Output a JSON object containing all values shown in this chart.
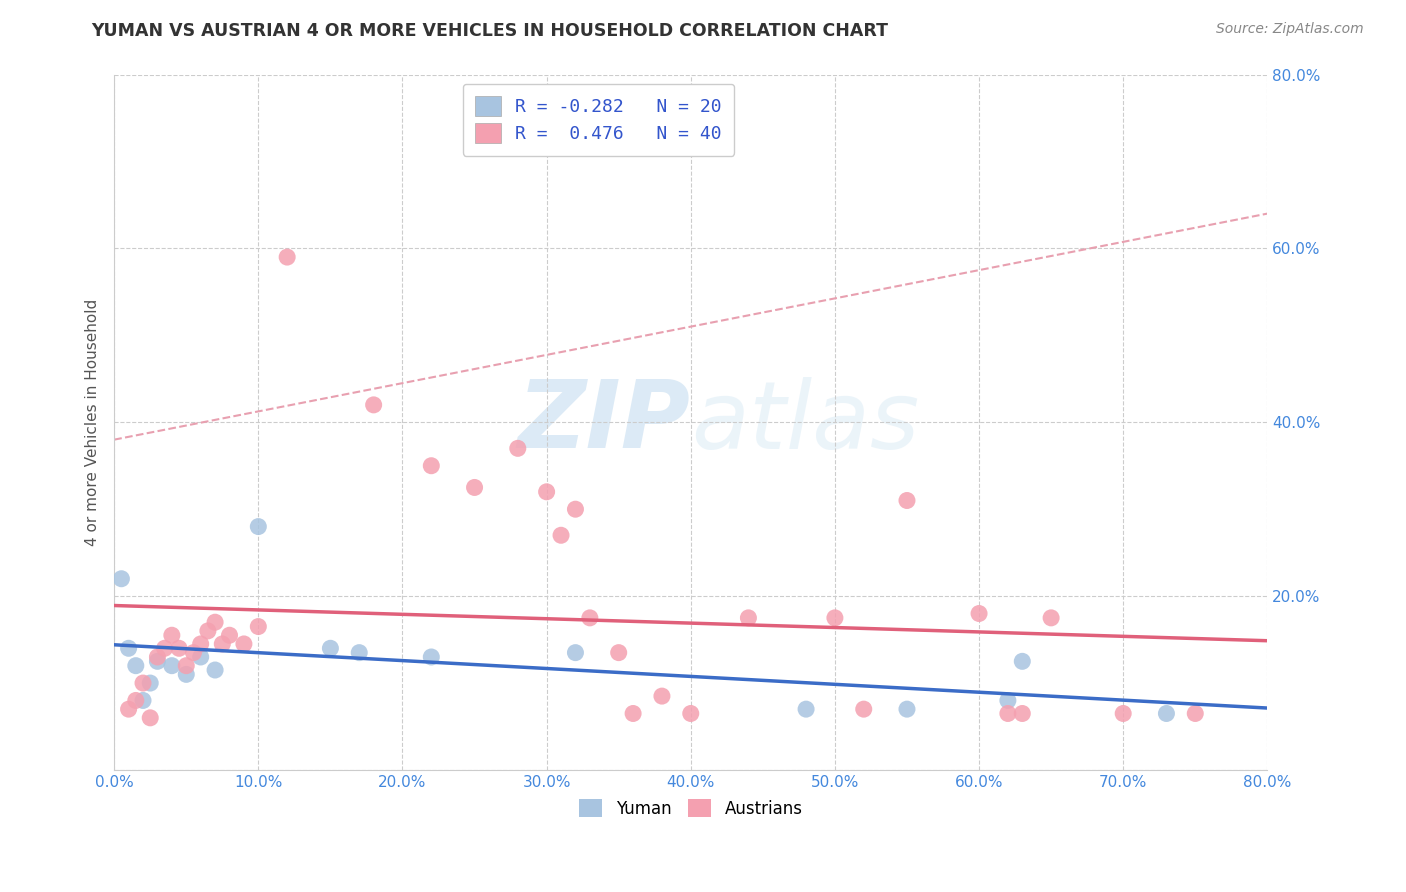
{
  "title": "YUMAN VS AUSTRIAN 4 OR MORE VEHICLES IN HOUSEHOLD CORRELATION CHART",
  "source": "Source: ZipAtlas.com",
  "ylabel": "4 or more Vehicles in Household",
  "xlim": [
    0.0,
    0.8
  ],
  "ylim": [
    0.0,
    0.8
  ],
  "xtick_vals": [
    0.0,
    0.1,
    0.2,
    0.3,
    0.4,
    0.5,
    0.6,
    0.7,
    0.8
  ],
  "ytick_vals": [
    0.0,
    0.2,
    0.4,
    0.6,
    0.8
  ],
  "grid_color": "#cccccc",
  "background_color": "#ffffff",
  "watermark_zip": "ZIP",
  "watermark_atlas": "atlas",
  "legend_R_yuman": "-0.282",
  "legend_N_yuman": "20",
  "legend_R_austrians": " 0.476",
  "legend_N_austrians": "40",
  "yuman_color": "#a8c4e0",
  "austrians_color": "#f4a0b0",
  "yuman_line_color": "#3b6cc7",
  "austrians_line_color": "#e0607a",
  "dash_line_color": "#e8a0b0",
  "title_color": "#333333",
  "source_color": "#888888",
  "tick_color": "#4488dd",
  "ylabel_color": "#555555",
  "legend_text_label_color": "#333333",
  "legend_text_value_color": "#3355cc",
  "yuman_points": [
    [
      0.005,
      0.22
    ],
    [
      0.01,
      0.14
    ],
    [
      0.015,
      0.12
    ],
    [
      0.02,
      0.08
    ],
    [
      0.025,
      0.1
    ],
    [
      0.03,
      0.125
    ],
    [
      0.04,
      0.12
    ],
    [
      0.05,
      0.11
    ],
    [
      0.06,
      0.13
    ],
    [
      0.07,
      0.115
    ],
    [
      0.1,
      0.28
    ],
    [
      0.15,
      0.14
    ],
    [
      0.17,
      0.135
    ],
    [
      0.22,
      0.13
    ],
    [
      0.32,
      0.135
    ],
    [
      0.48,
      0.07
    ],
    [
      0.55,
      0.07
    ],
    [
      0.62,
      0.08
    ],
    [
      0.63,
      0.125
    ],
    [
      0.73,
      0.065
    ]
  ],
  "austrians_points": [
    [
      0.01,
      0.07
    ],
    [
      0.015,
      0.08
    ],
    [
      0.02,
      0.1
    ],
    [
      0.025,
      0.06
    ],
    [
      0.03,
      0.13
    ],
    [
      0.035,
      0.14
    ],
    [
      0.04,
      0.155
    ],
    [
      0.045,
      0.14
    ],
    [
      0.05,
      0.12
    ],
    [
      0.055,
      0.135
    ],
    [
      0.06,
      0.145
    ],
    [
      0.065,
      0.16
    ],
    [
      0.07,
      0.17
    ],
    [
      0.075,
      0.145
    ],
    [
      0.08,
      0.155
    ],
    [
      0.09,
      0.145
    ],
    [
      0.1,
      0.165
    ],
    [
      0.12,
      0.59
    ],
    [
      0.18,
      0.42
    ],
    [
      0.22,
      0.35
    ],
    [
      0.25,
      0.325
    ],
    [
      0.28,
      0.37
    ],
    [
      0.3,
      0.32
    ],
    [
      0.31,
      0.27
    ],
    [
      0.32,
      0.3
    ],
    [
      0.33,
      0.175
    ],
    [
      0.35,
      0.135
    ],
    [
      0.36,
      0.065
    ],
    [
      0.38,
      0.085
    ],
    [
      0.4,
      0.065
    ],
    [
      0.44,
      0.175
    ],
    [
      0.5,
      0.175
    ],
    [
      0.52,
      0.07
    ],
    [
      0.55,
      0.31
    ],
    [
      0.6,
      0.18
    ],
    [
      0.62,
      0.065
    ],
    [
      0.63,
      0.065
    ],
    [
      0.65,
      0.175
    ],
    [
      0.7,
      0.065
    ],
    [
      0.75,
      0.065
    ]
  ]
}
